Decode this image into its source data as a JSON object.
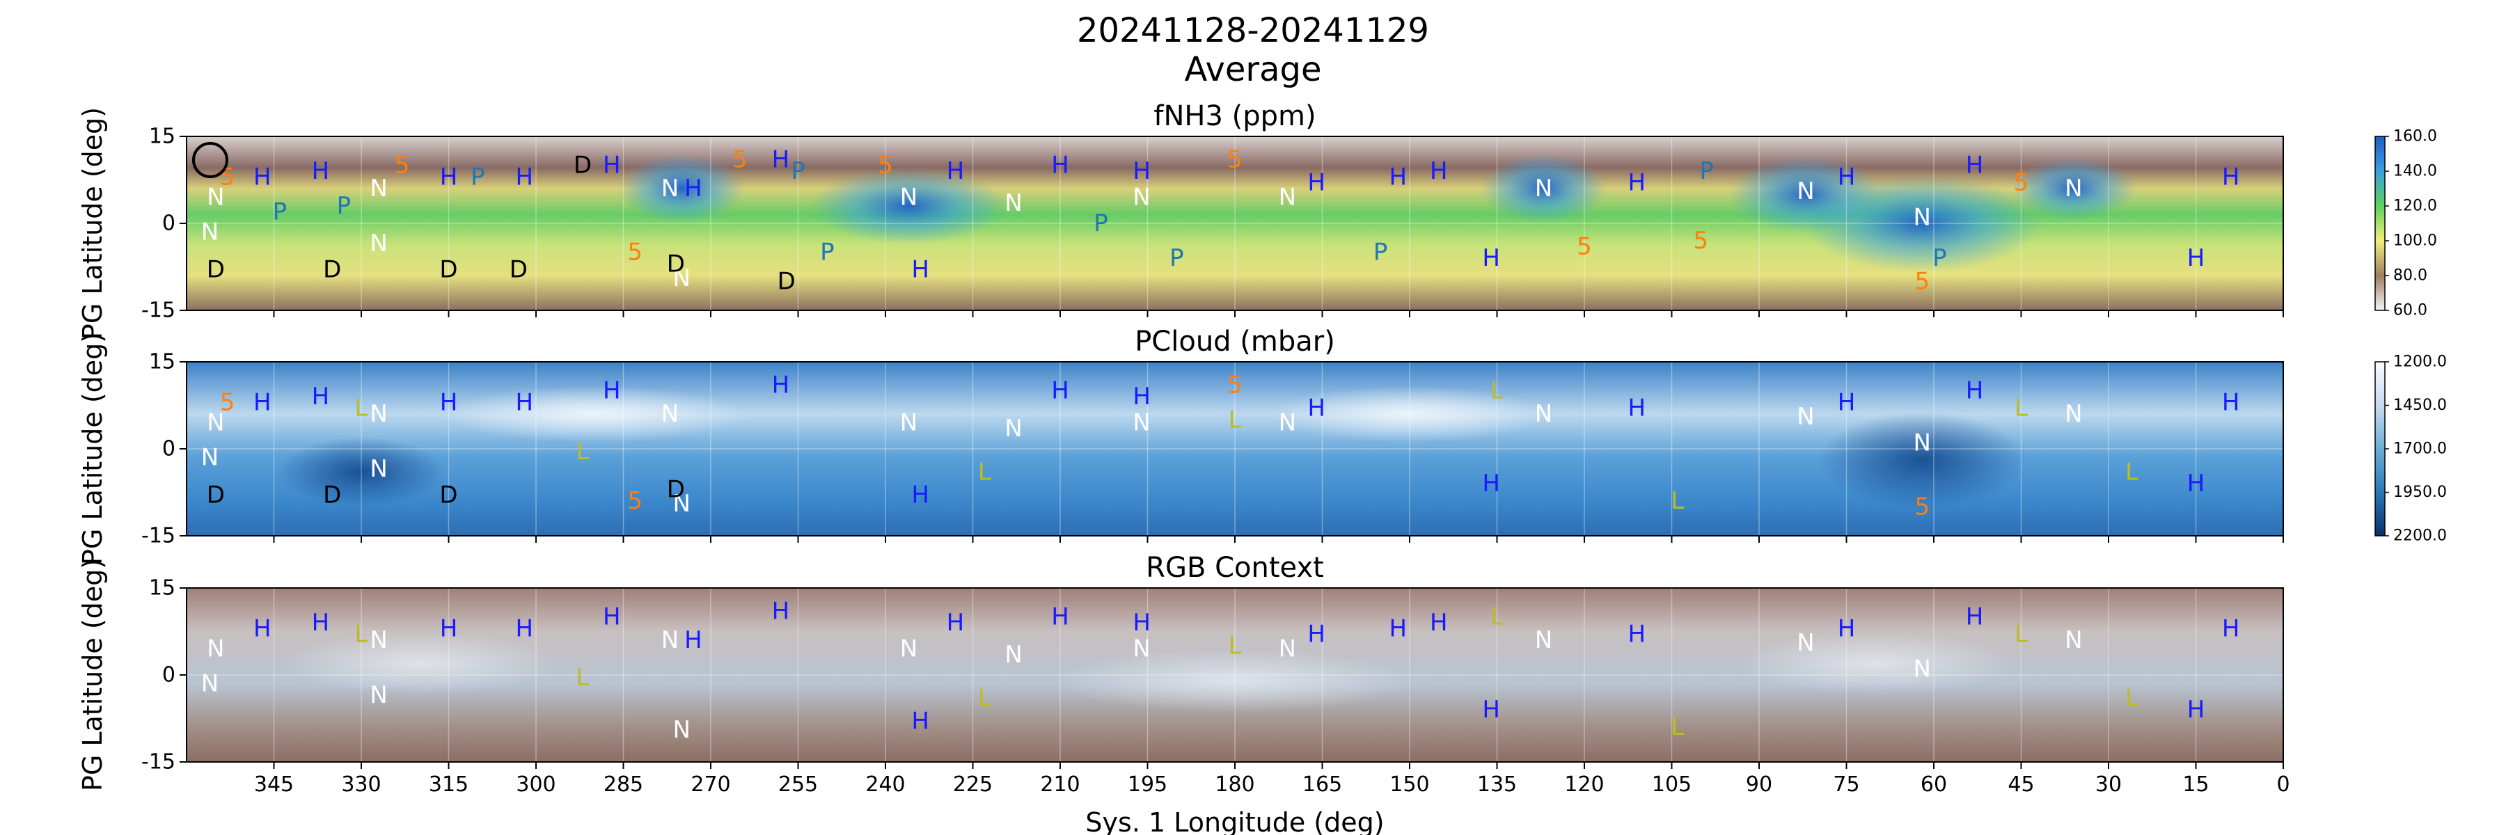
{
  "figure": {
    "title_line1": "20241128-20241129",
    "title_line2": "Average"
  },
  "chart_data": [
    {
      "type": "heatmap",
      "title": "fNH3 (ppm)",
      "ylabel": "PG Latitude (deg)",
      "xlabel": "",
      "xlim": [
        360,
        0
      ],
      "ylim": [
        -15,
        15
      ],
      "yticks": [
        15,
        0,
        -15
      ],
      "grid": true,
      "colorbar": {
        "ticks": [
          "160.0",
          "140.0",
          "120.0",
          "100.0",
          "80.0",
          "60.0"
        ],
        "range": [
          60,
          160
        ]
      },
      "features": [
        {
          "label": "N",
          "lon": 355,
          "lat": 4.5
        },
        {
          "label": "N",
          "lon": 356,
          "lat": -1.5
        },
        {
          "label": "N",
          "lon": 327,
          "lat": 6
        },
        {
          "label": "N",
          "lon": 327,
          "lat": -3.5
        },
        {
          "label": "N",
          "lon": 277,
          "lat": 6
        },
        {
          "label": "N",
          "lon": 275,
          "lat": -9.5
        },
        {
          "label": "N",
          "lon": 236,
          "lat": 4.5
        },
        {
          "label": "N",
          "lon": 218,
          "lat": 3.5
        },
        {
          "label": "N",
          "lon": 196,
          "lat": 4.5
        },
        {
          "label": "N",
          "lon": 171,
          "lat": 4.5
        },
        {
          "label": "N",
          "lon": 127,
          "lat": 6
        },
        {
          "label": "N",
          "lon": 82,
          "lat": 5.5
        },
        {
          "label": "N",
          "lon": 62,
          "lat": 1
        },
        {
          "label": "N",
          "lon": 36,
          "lat": 6
        },
        {
          "label": "H",
          "lon": 347,
          "lat": 8
        },
        {
          "label": "H",
          "lon": 337,
          "lat": 9
        },
        {
          "label": "H",
          "lon": 315,
          "lat": 8
        },
        {
          "label": "H",
          "lon": 302,
          "lat": 8
        },
        {
          "label": "H",
          "lon": 287,
          "lat": 10
        },
        {
          "label": "H",
          "lon": 273,
          "lat": 6
        },
        {
          "label": "H",
          "lon": 258,
          "lat": 11
        },
        {
          "label": "H",
          "lon": 234,
          "lat": -8
        },
        {
          "label": "H",
          "lon": 228,
          "lat": 9
        },
        {
          "label": "H",
          "lon": 210,
          "lat": 10
        },
        {
          "label": "H",
          "lon": 196,
          "lat": 9
        },
        {
          "label": "H",
          "lon": 166,
          "lat": 7
        },
        {
          "label": "H",
          "lon": 152,
          "lat": 8
        },
        {
          "label": "H",
          "lon": 145,
          "lat": 9
        },
        {
          "label": "H",
          "lon": 136,
          "lat": -6
        },
        {
          "label": "H",
          "lon": 111,
          "lat": 7
        },
        {
          "label": "H",
          "lon": 75,
          "lat": 8
        },
        {
          "label": "H",
          "lon": 53,
          "lat": 10
        },
        {
          "label": "H",
          "lon": 15,
          "lat": -6
        },
        {
          "label": "H",
          "lon": 9,
          "lat": 8
        },
        {
          "label": "D",
          "lon": 355,
          "lat": -8
        },
        {
          "label": "D",
          "lon": 335,
          "lat": -8
        },
        {
          "label": "D",
          "lon": 315,
          "lat": -8
        },
        {
          "label": "D",
          "lon": 303,
          "lat": -8
        },
        {
          "label": "D",
          "lon": 292,
          "lat": 10
        },
        {
          "label": "D",
          "lon": 276,
          "lat": -7
        },
        {
          "label": "D",
          "lon": 257,
          "lat": -10
        },
        {
          "label": "P",
          "lon": 344,
          "lat": 2
        },
        {
          "label": "P",
          "lon": 333,
          "lat": 3
        },
        {
          "label": "P",
          "lon": 310,
          "lat": 8
        },
        {
          "label": "P",
          "lon": 255,
          "lat": 9
        },
        {
          "label": "P",
          "lon": 250,
          "lat": -5
        },
        {
          "label": "P",
          "lon": 203,
          "lat": 0
        },
        {
          "label": "P",
          "lon": 190,
          "lat": -6
        },
        {
          "label": "P",
          "lon": 155,
          "lat": -5
        },
        {
          "label": "P",
          "lon": 99,
          "lat": 9
        },
        {
          "label": "P",
          "lon": 59,
          "lat": -6
        },
        {
          "label": "5",
          "lon": 353,
          "lat": 8
        },
        {
          "label": "5",
          "lon": 323,
          "lat": 10
        },
        {
          "label": "5",
          "lon": 283,
          "lat": -5
        },
        {
          "label": "5",
          "lon": 265,
          "lat": 11
        },
        {
          "label": "5",
          "lon": 240,
          "lat": 10
        },
        {
          "label": "5",
          "lon": 180,
          "lat": 11
        },
        {
          "label": "5",
          "lon": 120,
          "lat": -4
        },
        {
          "label": "5",
          "lon": 100,
          "lat": -3
        },
        {
          "label": "5",
          "lon": 62,
          "lat": -10
        },
        {
          "label": "5",
          "lon": 45,
          "lat": 7
        }
      ]
    },
    {
      "type": "heatmap",
      "title": "PCloud (mbar)",
      "ylabel": "PG Latitude (deg)",
      "xlabel": "",
      "xlim": [
        360,
        0
      ],
      "ylim": [
        -15,
        15
      ],
      "yticks": [
        15,
        0,
        -15
      ],
      "grid": true,
      "colorbar": {
        "ticks": [
          "1200.0",
          "1450.0",
          "1700.0",
          "1950.0",
          "2200.0"
        ],
        "range": [
          1200,
          2200
        ]
      },
      "features": [
        {
          "label": "N",
          "lon": 355,
          "lat": 4.5
        },
        {
          "label": "N",
          "lon": 356,
          "lat": -1.5
        },
        {
          "label": "N",
          "lon": 327,
          "lat": 6
        },
        {
          "label": "N",
          "lon": 327,
          "lat": -3.5
        },
        {
          "label": "N",
          "lon": 277,
          "lat": 6
        },
        {
          "label": "N",
          "lon": 275,
          "lat": -9.5
        },
        {
          "label": "N",
          "lon": 236,
          "lat": 4.5
        },
        {
          "label": "N",
          "lon": 218,
          "lat": 3.5
        },
        {
          "label": "N",
          "lon": 196,
          "lat": 4.5
        },
        {
          "label": "N",
          "lon": 171,
          "lat": 4.5
        },
        {
          "label": "N",
          "lon": 127,
          "lat": 6
        },
        {
          "label": "N",
          "lon": 82,
          "lat": 5.5
        },
        {
          "label": "N",
          "lon": 62,
          "lat": 1
        },
        {
          "label": "N",
          "lon": 36,
          "lat": 6
        },
        {
          "label": "H",
          "lon": 347,
          "lat": 8
        },
        {
          "label": "H",
          "lon": 337,
          "lat": 9
        },
        {
          "label": "H",
          "lon": 315,
          "lat": 8
        },
        {
          "label": "H",
          "lon": 302,
          "lat": 8
        },
        {
          "label": "H",
          "lon": 287,
          "lat": 10
        },
        {
          "label": "H",
          "lon": 258,
          "lat": 11
        },
        {
          "label": "H",
          "lon": 234,
          "lat": -8
        },
        {
          "label": "H",
          "lon": 210,
          "lat": 10
        },
        {
          "label": "H",
          "lon": 196,
          "lat": 9
        },
        {
          "label": "H",
          "lon": 166,
          "lat": 7
        },
        {
          "label": "H",
          "lon": 136,
          "lat": -6
        },
        {
          "label": "H",
          "lon": 111,
          "lat": 7
        },
        {
          "label": "H",
          "lon": 75,
          "lat": 8
        },
        {
          "label": "H",
          "lon": 53,
          "lat": 10
        },
        {
          "label": "H",
          "lon": 15,
          "lat": -6
        },
        {
          "label": "H",
          "lon": 9,
          "lat": 8
        },
        {
          "label": "L",
          "lon": 330,
          "lat": 7
        },
        {
          "label": "L",
          "lon": 292,
          "lat": -0.5
        },
        {
          "label": "L",
          "lon": 223,
          "lat": -4
        },
        {
          "label": "L",
          "lon": 180,
          "lat": 5
        },
        {
          "label": "L",
          "lon": 135,
          "lat": 10
        },
        {
          "label": "L",
          "lon": 104,
          "lat": -9
        },
        {
          "label": "L",
          "lon": 45,
          "lat": 7
        },
        {
          "label": "L",
          "lon": 26,
          "lat": -4
        },
        {
          "label": "D",
          "lon": 355,
          "lat": -8
        },
        {
          "label": "D",
          "lon": 335,
          "lat": -8
        },
        {
          "label": "D",
          "lon": 315,
          "lat": -8
        },
        {
          "label": "D",
          "lon": 276,
          "lat": -7
        },
        {
          "label": "5",
          "lon": 353,
          "lat": 8
        },
        {
          "label": "5",
          "lon": 283,
          "lat": -9
        },
        {
          "label": "5",
          "lon": 180,
          "lat": 11
        },
        {
          "label": "5",
          "lon": 62,
          "lat": -10
        }
      ]
    },
    {
      "type": "heatmap",
      "title": "RGB Context",
      "ylabel": "PG Latitude (deg)",
      "xlabel": "Sys. 1 Longitude (deg)",
      "xlim": [
        360,
        0
      ],
      "ylim": [
        -15,
        15
      ],
      "yticks": [
        15,
        0,
        -15
      ],
      "xticks": [
        "345",
        "330",
        "315",
        "300",
        "285",
        "270",
        "255",
        "240",
        "225",
        "210",
        "195",
        "180",
        "165",
        "150",
        "135",
        "120",
        "105",
        "90",
        "75",
        "60",
        "45",
        "30",
        "15",
        "0"
      ],
      "xtick_values": [
        345,
        330,
        315,
        300,
        285,
        270,
        255,
        240,
        225,
        210,
        195,
        180,
        165,
        150,
        135,
        120,
        105,
        90,
        75,
        60,
        45,
        30,
        15,
        0
      ],
      "grid": true,
      "features": [
        {
          "label": "N",
          "lon": 355,
          "lat": 4.5
        },
        {
          "label": "N",
          "lon": 356,
          "lat": -1.5
        },
        {
          "label": "N",
          "lon": 327,
          "lat": 6
        },
        {
          "label": "N",
          "lon": 327,
          "lat": -3.5
        },
        {
          "label": "N",
          "lon": 277,
          "lat": 6
        },
        {
          "label": "N",
          "lon": 275,
          "lat": -9.5
        },
        {
          "label": "N",
          "lon": 236,
          "lat": 4.5
        },
        {
          "label": "N",
          "lon": 218,
          "lat": 3.5
        },
        {
          "label": "N",
          "lon": 196,
          "lat": 4.5
        },
        {
          "label": "N",
          "lon": 171,
          "lat": 4.5
        },
        {
          "label": "N",
          "lon": 127,
          "lat": 6
        },
        {
          "label": "N",
          "lon": 82,
          "lat": 5.5
        },
        {
          "label": "N",
          "lon": 62,
          "lat": 1
        },
        {
          "label": "N",
          "lon": 36,
          "lat": 6
        },
        {
          "label": "H",
          "lon": 347,
          "lat": 8
        },
        {
          "label": "H",
          "lon": 337,
          "lat": 9
        },
        {
          "label": "H",
          "lon": 315,
          "lat": 8
        },
        {
          "label": "H",
          "lon": 302,
          "lat": 8
        },
        {
          "label": "H",
          "lon": 287,
          "lat": 10
        },
        {
          "label": "H",
          "lon": 273,
          "lat": 6
        },
        {
          "label": "H",
          "lon": 258,
          "lat": 11
        },
        {
          "label": "H",
          "lon": 234,
          "lat": -8
        },
        {
          "label": "H",
          "lon": 228,
          "lat": 9
        },
        {
          "label": "H",
          "lon": 210,
          "lat": 10
        },
        {
          "label": "H",
          "lon": 196,
          "lat": 9
        },
        {
          "label": "H",
          "lon": 166,
          "lat": 7
        },
        {
          "label": "H",
          "lon": 152,
          "lat": 8
        },
        {
          "label": "H",
          "lon": 145,
          "lat": 9
        },
        {
          "label": "H",
          "lon": 136,
          "lat": -6
        },
        {
          "label": "H",
          "lon": 111,
          "lat": 7
        },
        {
          "label": "H",
          "lon": 75,
          "lat": 8
        },
        {
          "label": "H",
          "lon": 53,
          "lat": 10
        },
        {
          "label": "H",
          "lon": 15,
          "lat": -6
        },
        {
          "label": "H",
          "lon": 9,
          "lat": 8
        },
        {
          "label": "L",
          "lon": 330,
          "lat": 7
        },
        {
          "label": "L",
          "lon": 292,
          "lat": -0.5
        },
        {
          "label": "L",
          "lon": 223,
          "lat": -4
        },
        {
          "label": "L",
          "lon": 180,
          "lat": 5
        },
        {
          "label": "L",
          "lon": 135,
          "lat": 10
        },
        {
          "label": "L",
          "lon": 104,
          "lat": -9
        },
        {
          "label": "L",
          "lon": 45,
          "lat": 7
        },
        {
          "label": "L",
          "lon": 26,
          "lat": -4
        }
      ]
    }
  ],
  "colors": {
    "N": "#ffffff",
    "H": "#1a1aff",
    "P": "#1f77b4",
    "5": "#ff7f0e",
    "D": "#000000",
    "L": "#bcbd22"
  }
}
